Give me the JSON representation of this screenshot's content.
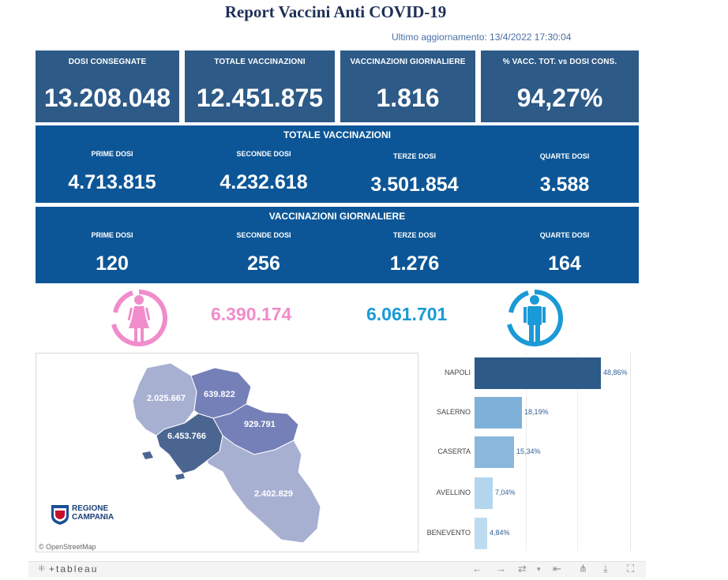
{
  "header": {
    "title": "Report Vaccini Anti COVID-19",
    "updated": "Ultimo aggiornamento: 13/4/2022 17:30:04"
  },
  "kpis": [
    {
      "label": "DOSI  CONSEGNATE",
      "value": "13.208.048"
    },
    {
      "label": "TOTALE VACCINAZIONI",
      "value": "12.451.875"
    },
    {
      "label": "VACCINAZIONI GIORNALIERE",
      "value": "1.816"
    },
    {
      "label": "% VACC. TOT. vs DOSI CONS.",
      "value": "94,27%"
    }
  ],
  "totale": {
    "title": "TOTALE VACCINAZIONI",
    "cells": [
      {
        "label": "PRIME DOSI",
        "value": "4.713.815"
      },
      {
        "label": "SECONDE DOSI",
        "value": "4.232.618"
      },
      {
        "label": "TERZE DOSI",
        "value": "3.501.854"
      },
      {
        "label": "QUARTE DOSI",
        "value": "3.588"
      }
    ]
  },
  "giornaliere": {
    "title": "VACCINAZIONI GIORNALIERE",
    "cells": [
      {
        "label": "PRIME DOSI",
        "value": "120"
      },
      {
        "label": "SECONDE DOSI",
        "value": "256"
      },
      {
        "label": "TERZE DOSI",
        "value": "1.276"
      },
      {
        "label": "QUARTE DOSI",
        "value": "164"
      }
    ]
  },
  "gender": {
    "female": "6.390.174",
    "male": "6.061.701",
    "female_color": "#f08ccb",
    "male_color": "#1a9ad6"
  },
  "map": {
    "provinces": {
      "benevento": "639.822",
      "caserta": "2.025.667",
      "avellino": "929.791",
      "napoli": "6.453.766",
      "salerno": "2.402.829"
    },
    "logo_line1": "REGIONE",
    "logo_line2": "CAMPANIA",
    "attribution": "© OpenStreetMap"
  },
  "chart_data": {
    "type": "bar",
    "orientation": "horizontal",
    "categories": [
      "NAPOLI",
      "SALERNO",
      "CASERTA",
      "AVELLINO",
      "BENEVENTO"
    ],
    "values": [
      48.86,
      18.19,
      15.34,
      7.04,
      4.84
    ],
    "labels": [
      "48,86%",
      "18,19%",
      "15,34%",
      "7,04%",
      "4,84%"
    ],
    "colors": [
      "#2d5a87",
      "#7fb0d8",
      "#8ab8dc",
      "#b3d6ee",
      "#bedcf1"
    ],
    "xlim": [
      0,
      55
    ]
  },
  "toolbar": {
    "brand": "+tableau"
  }
}
